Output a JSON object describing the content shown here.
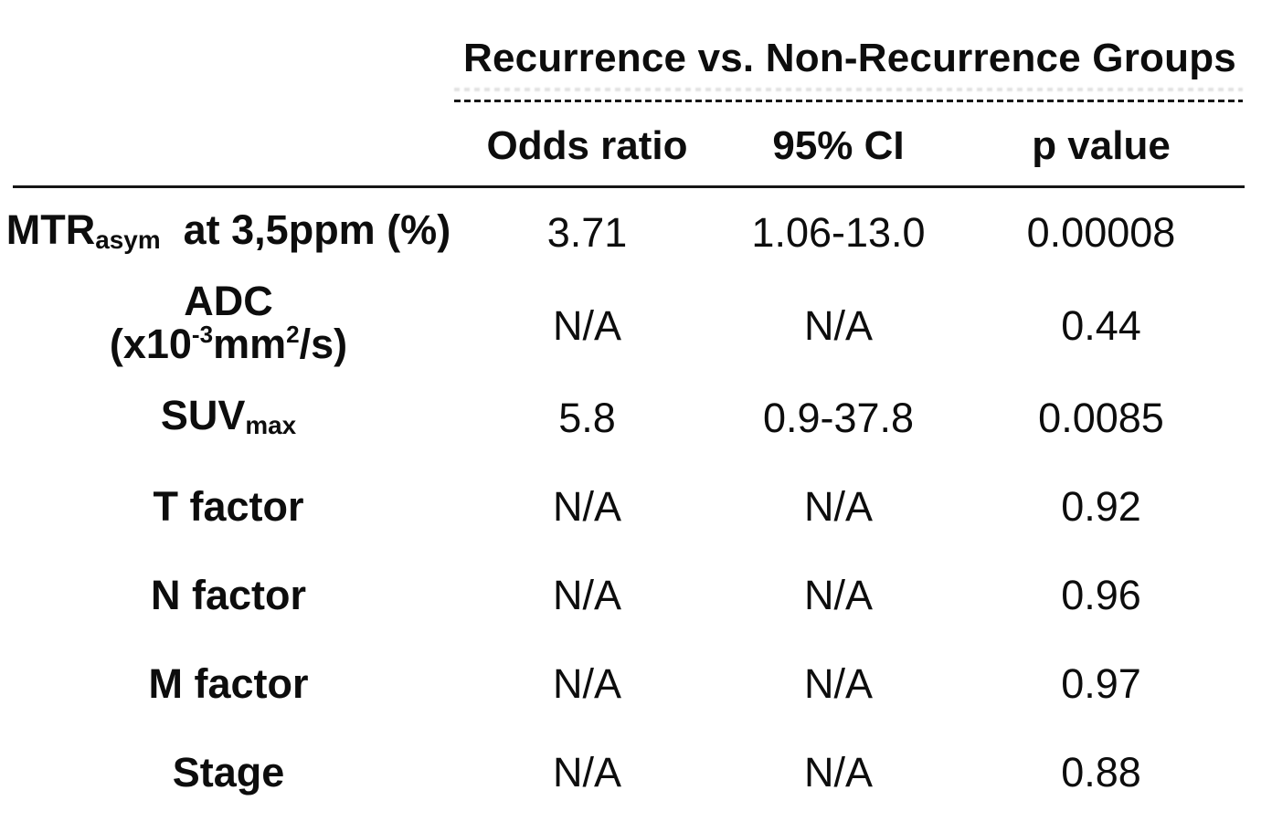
{
  "table": {
    "group_header": "Recurrence vs. Non-Recurrence Groups",
    "columns": [
      "Odds ratio",
      "95% CI",
      "p value"
    ],
    "rows": [
      {
        "label_text": "MTR(asym) at 3,5ppm (%)",
        "label_parts": [
          {
            "t": "text",
            "v": "MTR"
          },
          {
            "t": "sub",
            "v": "asym"
          },
          {
            "t": "text",
            "v": "  at 3,5ppm (%)"
          }
        ],
        "odds_ratio": "3.71",
        "ci_95": "1.06-13.0",
        "p_value": "0.00008"
      },
      {
        "label_text": "ADC (x10^-3 mm^2/s)",
        "label_parts": [
          {
            "t": "text",
            "v": "ADC"
          },
          {
            "t": "break"
          },
          {
            "t": "text",
            "v": "(x10"
          },
          {
            "t": "sup",
            "v": "-3"
          },
          {
            "t": "text",
            "v": "mm"
          },
          {
            "t": "sup",
            "v": "2"
          },
          {
            "t": "text",
            "v": "/s)"
          }
        ],
        "odds_ratio": "N/A",
        "ci_95": "N/A",
        "p_value": "0.44"
      },
      {
        "label_text": "SUV(max)",
        "label_parts": [
          {
            "t": "text",
            "v": "SUV"
          },
          {
            "t": "sub",
            "v": "max"
          }
        ],
        "odds_ratio": "5.8",
        "ci_95": "0.9-37.8",
        "p_value": "0.0085"
      },
      {
        "label_text": "T factor",
        "label_parts": [
          {
            "t": "text",
            "v": "T factor"
          }
        ],
        "odds_ratio": "N/A",
        "ci_95": "N/A",
        "p_value": "0.92"
      },
      {
        "label_text": "N factor",
        "label_parts": [
          {
            "t": "text",
            "v": "N factor"
          }
        ],
        "odds_ratio": "N/A",
        "ci_95": "N/A",
        "p_value": "0.96"
      },
      {
        "label_text": "M factor",
        "label_parts": [
          {
            "t": "text",
            "v": "M factor"
          }
        ],
        "odds_ratio": "N/A",
        "ci_95": "N/A",
        "p_value": "0.97"
      },
      {
        "label_text": "Stage",
        "label_parts": [
          {
            "t": "text",
            "v": "Stage"
          }
        ],
        "odds_ratio": "N/A",
        "ci_95": "N/A",
        "p_value": "0.88"
      }
    ],
    "colors": {
      "text": "#0d0d0d",
      "background": "#ffffff",
      "rule": "#151515"
    }
  },
  "chart_data": {
    "type": "table",
    "title": "Recurrence vs. Non-Recurrence Groups",
    "columns": [
      "",
      "Odds ratio",
      "95% CI",
      "p value"
    ],
    "rows": [
      [
        "MTR(asym) at 3,5ppm (%)",
        "3.71",
        "1.06-13.0",
        "0.00008"
      ],
      [
        "ADC (x10^-3 mm^2/s)",
        "N/A",
        "N/A",
        "0.44"
      ],
      [
        "SUV(max)",
        "5.8",
        "0.9-37.8",
        "0.0085"
      ],
      [
        "T factor",
        "N/A",
        "N/A",
        "0.92"
      ],
      [
        "N factor",
        "N/A",
        "N/A",
        "0.96"
      ],
      [
        "M factor",
        "N/A",
        "N/A",
        "0.97"
      ],
      [
        "Stage",
        "N/A",
        "N/A",
        "0.88"
      ]
    ]
  }
}
